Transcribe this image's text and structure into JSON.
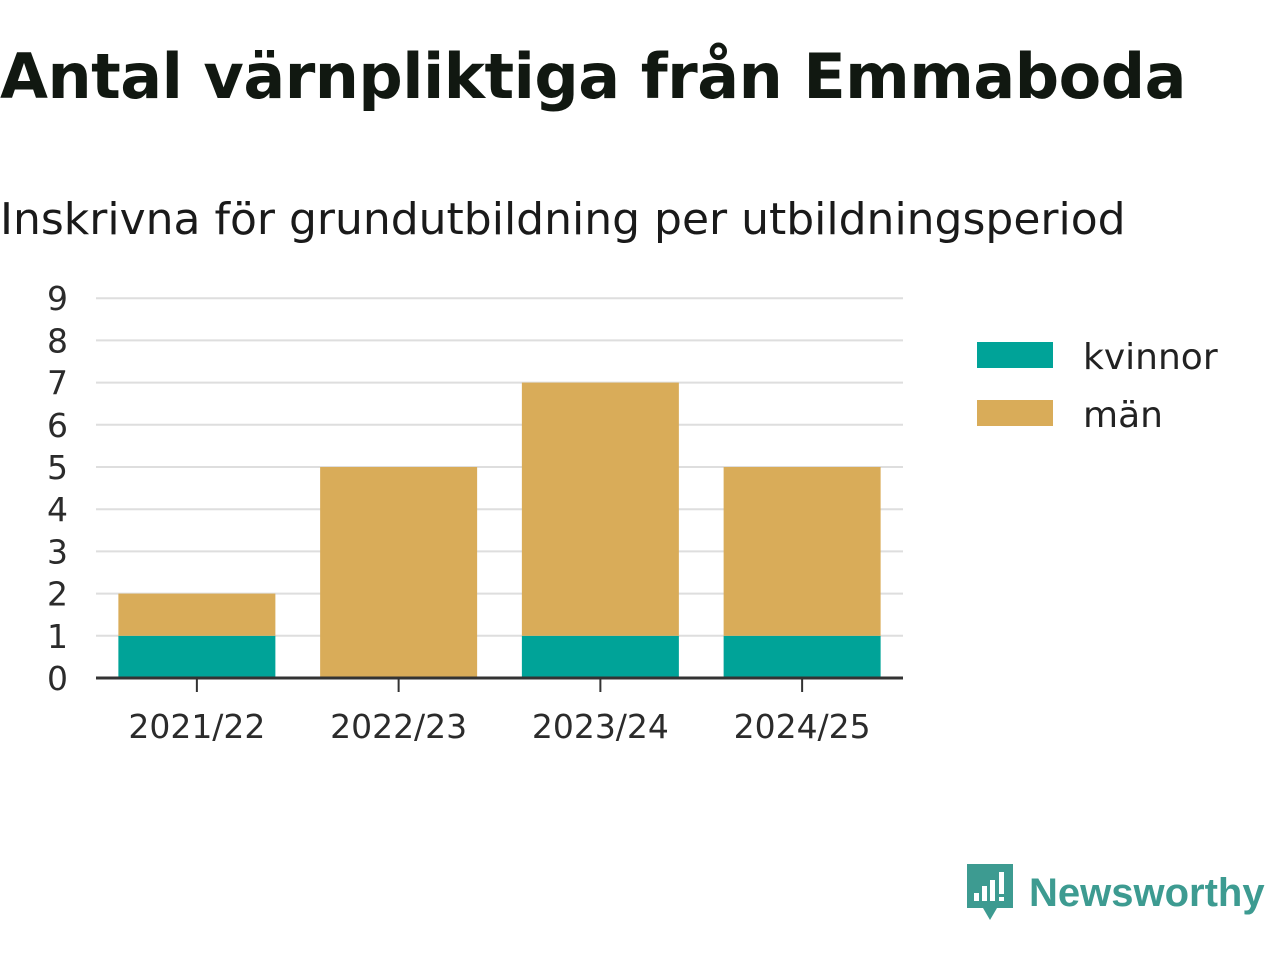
{
  "title": "Antal värnpliktiga från Emmaboda",
  "subtitle": "Inskrivna för grundutbildning per utbildningsperiod",
  "chart_data": {
    "type": "bar",
    "stacked": true,
    "categories": [
      "2021/22",
      "2022/23",
      "2023/24",
      "2024/25"
    ],
    "series": [
      {
        "name": "kvinnor",
        "values": [
          1,
          0,
          1,
          1
        ],
        "color": "#00a398"
      },
      {
        "name": "män",
        "values": [
          1,
          5,
          6,
          4
        ],
        "color": "#d9ac59"
      }
    ],
    "ylim": [
      0,
      9
    ],
    "yticks": [
      "0",
      "1",
      "2",
      "3",
      "4",
      "5",
      "6",
      "7",
      "8",
      "9"
    ],
    "grid": true,
    "legend_position": "right",
    "xlabel": "",
    "ylabel": ""
  },
  "brand": {
    "name": "Newsworthy",
    "icon": "newsworthy-logo-icon",
    "color": "#3d9b91"
  }
}
